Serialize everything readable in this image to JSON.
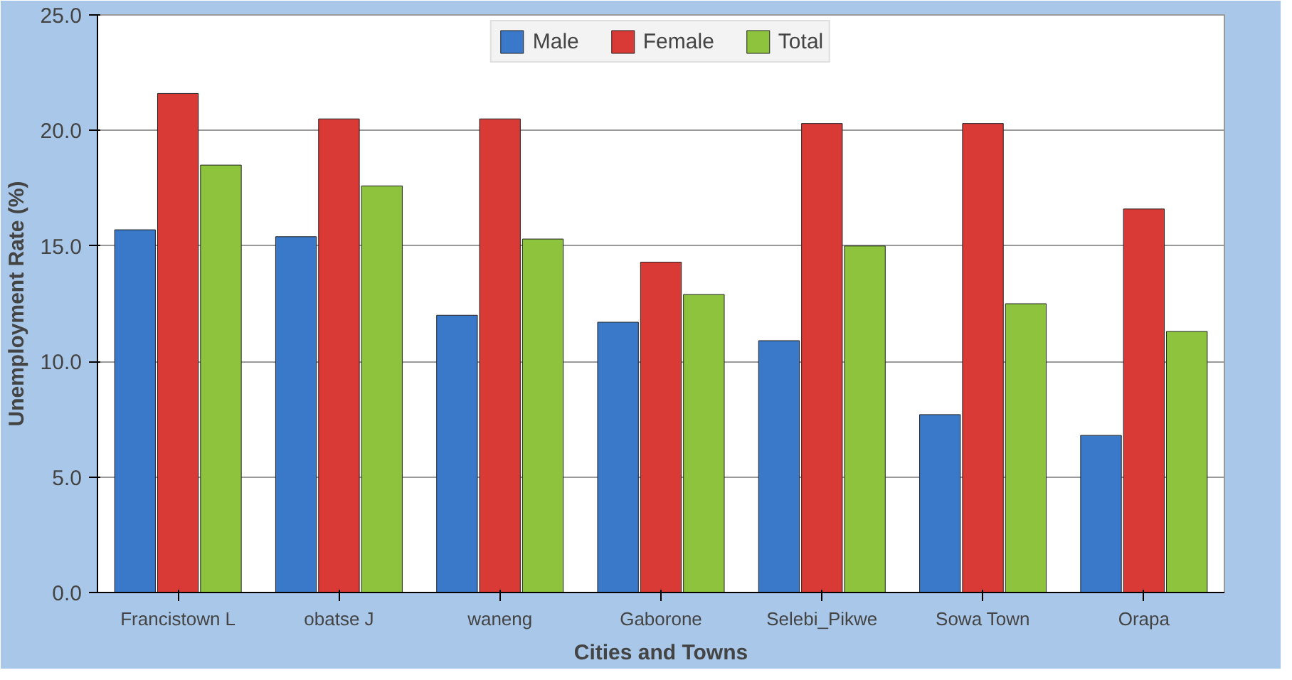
{
  "chart_data": {
    "type": "bar",
    "categories": [
      "Francistown L",
      "obatse J",
      "waneng",
      "Gaborone",
      "Selebi_Pikwe",
      "Sowa Town",
      "Orapa"
    ],
    "series": [
      {
        "name": "Male",
        "color": "#3a78c9",
        "values": [
          15.7,
          15.4,
          12.0,
          11.7,
          10.9,
          7.7,
          6.8
        ]
      },
      {
        "name": "Female",
        "color": "#d93a35",
        "values": [
          21.6,
          20.5,
          20.5,
          14.3,
          20.3,
          20.3,
          16.6
        ]
      },
      {
        "name": "Total",
        "color": "#8dc33d",
        "values": [
          18.5,
          17.6,
          15.3,
          12.9,
          15.0,
          12.5,
          11.3
        ]
      }
    ],
    "xlabel": "Cities and Towns",
    "ylabel": "Unemployment Rate (%)",
    "ylim": [
      0,
      25
    ],
    "yticks": [
      {
        "value": 0,
        "label": "0.0"
      },
      {
        "value": 5,
        "label": "5.0"
      },
      {
        "value": 10,
        "label": "10.0"
      },
      {
        "value": 15,
        "label": "15.0"
      },
      {
        "value": 20,
        "label": "20.0"
      },
      {
        "value": 25,
        "label": "25.0"
      }
    ],
    "grid": "y",
    "legend": "top"
  }
}
